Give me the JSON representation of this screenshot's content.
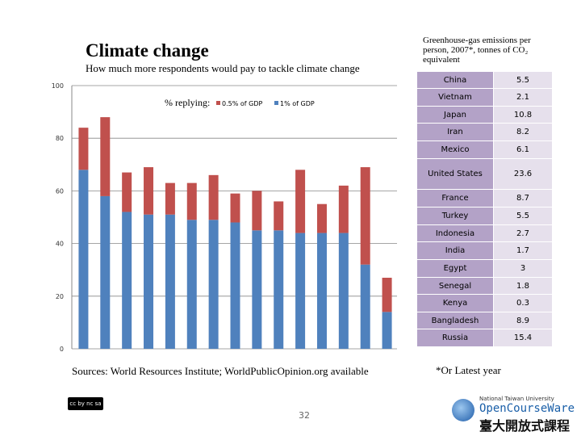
{
  "title": "Climate change",
  "subtitle": "How much more respondents would pay to tackle climate change",
  "chart_data": {
    "type": "bar",
    "stacked": true,
    "legend_prefix": "% replying:",
    "legend_placement": "top",
    "ylim": [
      0,
      100
    ],
    "yticks": [
      0,
      20,
      40,
      60,
      80,
      100
    ],
    "grid": true,
    "categories": [
      "China",
      "Vietnam",
      "Japan",
      "Iran",
      "Mexico",
      "United States",
      "France",
      "Turkey",
      "Indonesia",
      "India",
      "Egypt",
      "Senegal",
      "Kenya",
      "Bangladesh",
      "Russia"
    ],
    "series": [
      {
        "name": "1% of GDP",
        "color": "#4f81bd",
        "values": [
          68,
          58,
          52,
          51,
          51,
          49,
          49,
          48,
          45,
          45,
          44,
          44,
          44,
          32,
          14
        ]
      },
      {
        "name": "0.5% of GDP",
        "color": "#c0504d",
        "values": [
          16,
          30,
          15,
          18,
          12,
          14,
          17,
          11,
          15,
          11,
          24,
          11,
          18,
          37,
          13
        ]
      }
    ],
    "legend_order": [
      "0.5% of GDP",
      "1% of GDP"
    ]
  },
  "table": {
    "title": "Greenhouse-gas emissions per person, 2007*, tonnes of CO₂ equivalent",
    "rows": [
      {
        "country": "China",
        "value": "5.5"
      },
      {
        "country": "Vietnam",
        "value": "2.1"
      },
      {
        "country": "Japan",
        "value": "10.8"
      },
      {
        "country": "Iran",
        "value": "8.2"
      },
      {
        "country": "Mexico",
        "value": "6.1"
      },
      {
        "country": "United States",
        "value": "23.6"
      },
      {
        "country": "France",
        "value": "8.7"
      },
      {
        "country": "Turkey",
        "value": "5.5"
      },
      {
        "country": "Indonesia",
        "value": "2.7"
      },
      {
        "country": "India",
        "value": "1.7"
      },
      {
        "country": "Egypt",
        "value": "3"
      },
      {
        "country": "Senegal",
        "value": "1.8"
      },
      {
        "country": "Kenya",
        "value": "0.3"
      },
      {
        "country": "Bangladesh",
        "value": "8.9"
      },
      {
        "country": "Russia",
        "value": "15.4"
      }
    ]
  },
  "sources": "Sources: World Resources Institute; WorldPublicOpinion.org available",
  "note": "*Or Latest year",
  "page_number": "32",
  "license": "cc by nc sa",
  "logo": {
    "line1": "National Taiwan University",
    "line2": "OpenCourseWare",
    "line3": "臺大開放式課程",
    "mark": "NTU"
  }
}
